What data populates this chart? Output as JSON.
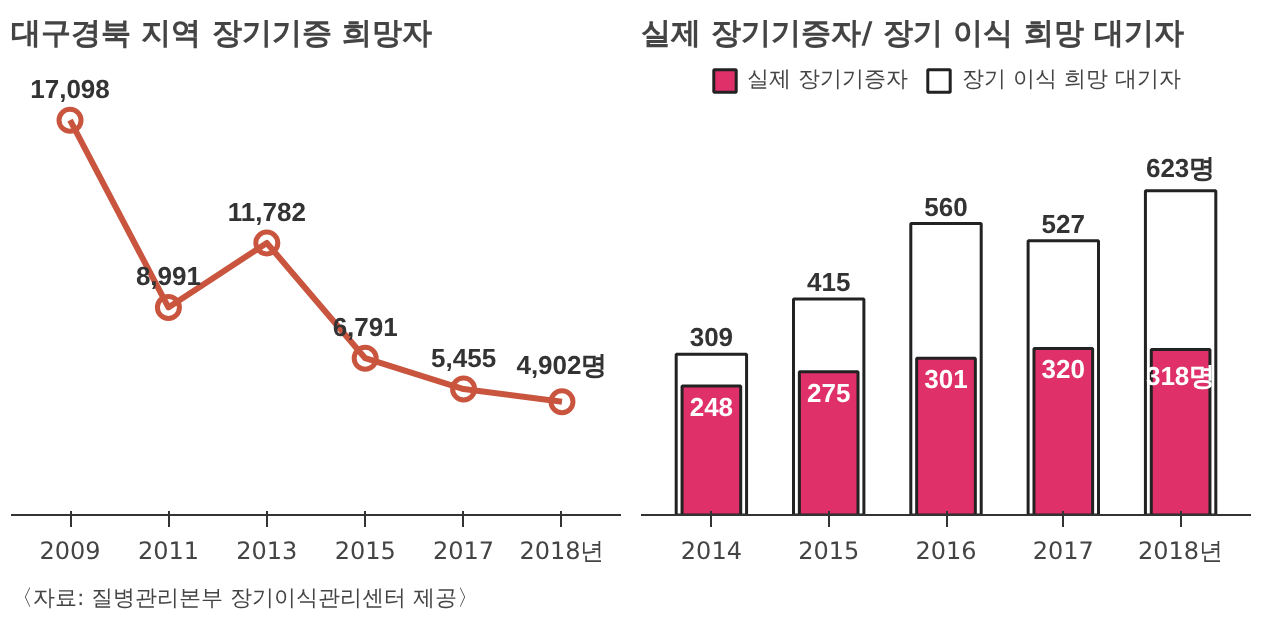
{
  "chart_data": [
    {
      "type": "line",
      "title": "대구경북 지역 장기기증 희망자",
      "categories": [
        "2009",
        "2011",
        "2013",
        "2015",
        "2017",
        "2018년"
      ],
      "values": [
        17098,
        8991,
        11782,
        6791,
        5455,
        4902
      ],
      "value_labels": [
        "17,098",
        "8,991",
        "11,782",
        "6,791",
        "5,455",
        "4,902명"
      ],
      "color": "#c9553e",
      "marker": "circle",
      "line_style": "solid",
      "grid": false,
      "annotations": [
        "〈자료: 질병관리본부 장기이식관리센터 제공〉"
      ]
    },
    {
      "type": "bar",
      "title": "실제 장기기증자/ 장기 이식 희망 대기자",
      "categories": [
        "2014",
        "2015",
        "2016",
        "2017",
        "2018년"
      ],
      "legend": "top",
      "grid": false,
      "series": [
        {
          "name": "실제 장기기증자",
          "color": "#e0306a",
          "values": [
            248,
            275,
            301,
            320,
            318
          ],
          "value_labels": [
            "248",
            "275",
            "301",
            "320",
            "318명"
          ]
        },
        {
          "name": "장기 이식 희망 대기자",
          "color": "#ffffff",
          "values": [
            309,
            415,
            560,
            527,
            623
          ],
          "value_labels": [
            "309",
            "415",
            "560",
            "527",
            "623명"
          ]
        }
      ]
    }
  ]
}
